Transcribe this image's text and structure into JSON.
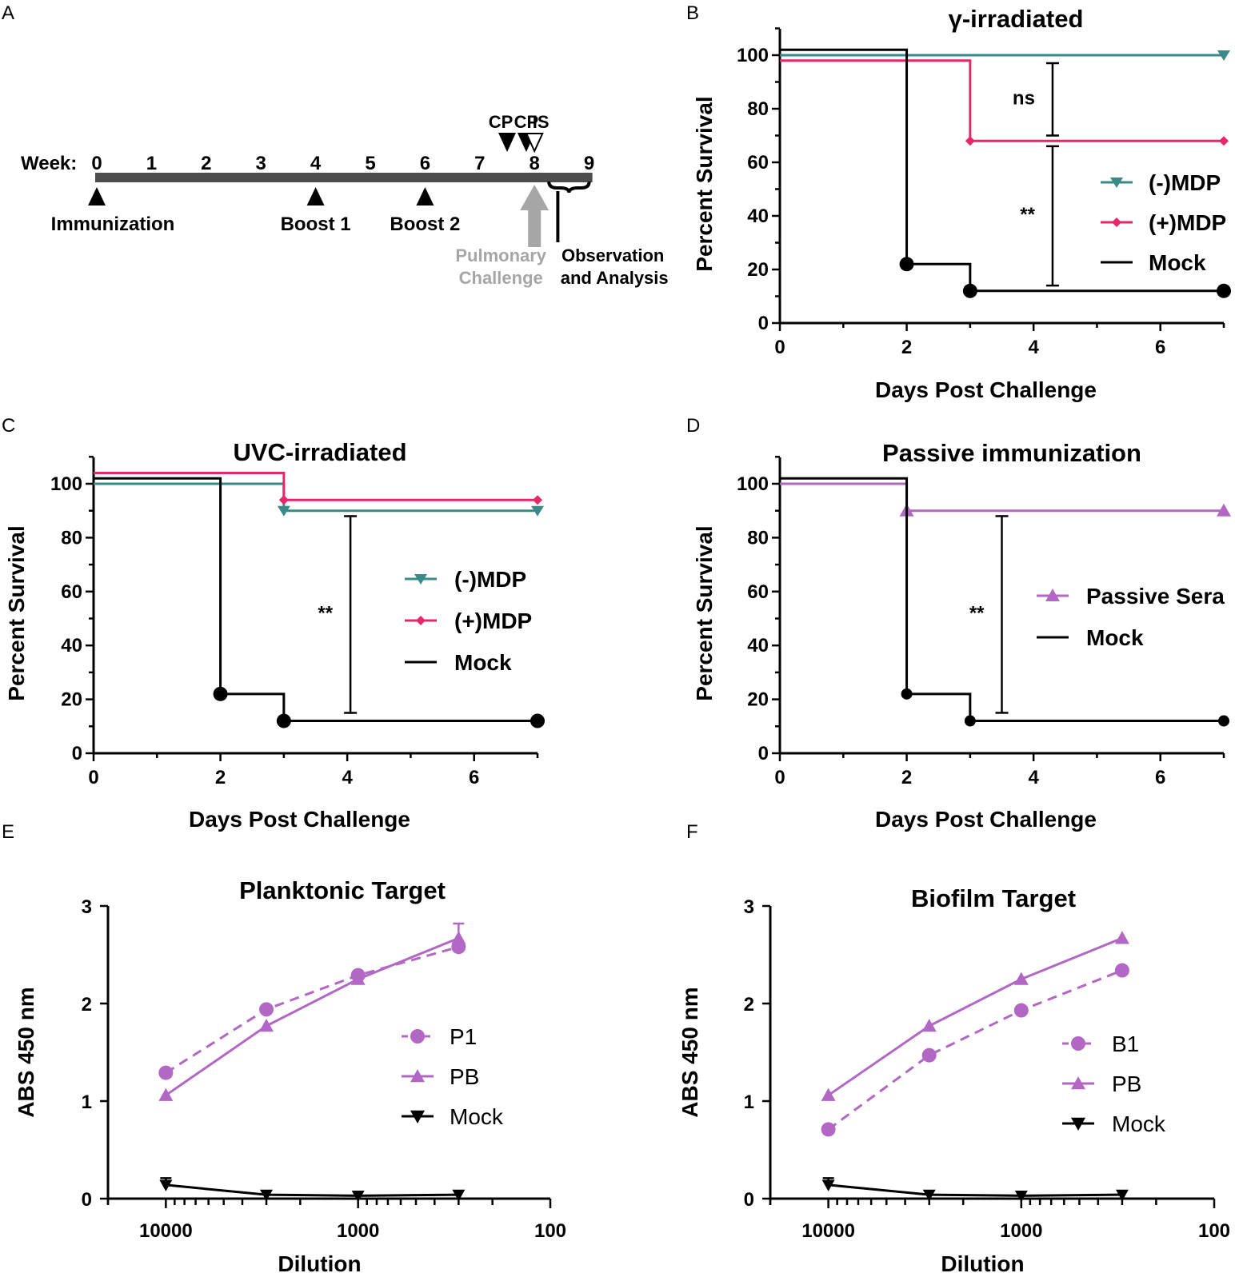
{
  "colors": {
    "teal": "#3a8a8a",
    "pink": "#e8276a",
    "black": "#000000",
    "purple": "#b267c4",
    "gray": "#a6a6a6",
    "bar": "#4d4d4d"
  },
  "panels": {
    "A": {
      "letter": "A",
      "week_label": "Week:",
      "weeks": [
        "0",
        "1",
        "2",
        "3",
        "4",
        "5",
        "6",
        "7",
        "8",
        "9"
      ],
      "events": [
        {
          "label": "Immunization",
          "week": 0
        },
        {
          "label": "Boost 1",
          "week": 4
        },
        {
          "label": "Boost 2",
          "week": 6
        }
      ],
      "markers": [
        {
          "label": "CP",
          "week": 7.5,
          "type": "filled"
        },
        {
          "label": "CP",
          "week": 7.85,
          "type": "filled"
        },
        {
          "label": "IS",
          "week": 8.0,
          "type": "open"
        }
      ],
      "challenge_label_1": "Pulmonary",
      "challenge_label_2": "Challenge",
      "observation_label_1": "Observation",
      "observation_label_2": "and Analysis"
    },
    "B": {
      "letter": "B"
    },
    "C": {
      "letter": "C"
    },
    "D": {
      "letter": "D"
    },
    "E": {
      "letter": "E"
    },
    "F": {
      "letter": "F"
    }
  },
  "chart_data": [
    {
      "id": "B",
      "type": "line",
      "subtype": "survival-step",
      "title": "γ-irradiated",
      "xlabel": "Days Post Challenge",
      "ylabel": "Percent Survival",
      "xlim": [
        0,
        7
      ],
      "ylim": [
        0,
        110
      ],
      "xticks": [
        0,
        2,
        4,
        6
      ],
      "yticks": [
        0,
        20,
        40,
        60,
        80,
        100
      ],
      "series": [
        {
          "name": "(-)MDP",
          "color": "#3a8a8a",
          "marker": "triangle-down",
          "steps": [
            [
              0,
              100
            ],
            [
              7,
              100
            ]
          ],
          "markers": [
            [
              7,
              100
            ]
          ]
        },
        {
          "name": "(+)MDP",
          "color": "#e8276a",
          "marker": "diamond",
          "steps": [
            [
              0,
              98
            ],
            [
              3,
              98
            ],
            [
              3,
              68
            ],
            [
              7,
              68
            ]
          ],
          "markers": [
            [
              3,
              68
            ],
            [
              7,
              68
            ]
          ]
        },
        {
          "name": "Mock",
          "color": "#000000",
          "marker": "circle",
          "steps": [
            [
              0,
              102
            ],
            [
              2,
              102
            ],
            [
              2,
              22
            ],
            [
              3,
              22
            ],
            [
              3,
              12
            ],
            [
              7,
              12
            ]
          ],
          "markers": [
            [
              2,
              22
            ],
            [
              3,
              12
            ],
            [
              7,
              12
            ]
          ]
        }
      ],
      "annotations": [
        {
          "text": "ns",
          "x": 4.3,
          "y_top": 97,
          "y_bottom": 70
        },
        {
          "text": "**",
          "x": 4.3,
          "y_top": 66,
          "y_bottom": 14
        }
      ],
      "legend": "right"
    },
    {
      "id": "C",
      "type": "line",
      "subtype": "survival-step",
      "title": "UVC-irradiated",
      "xlabel": "Days Post Challenge",
      "ylabel": "Percent Survival",
      "xlim": [
        0,
        7
      ],
      "ylim": [
        0,
        110
      ],
      "xticks": [
        0,
        2,
        4,
        6
      ],
      "yticks": [
        0,
        20,
        40,
        60,
        80,
        100
      ],
      "series": [
        {
          "name": "(-)MDP",
          "color": "#3a8a8a",
          "marker": "triangle-down",
          "steps": [
            [
              0,
              100
            ],
            [
              3,
              100
            ],
            [
              3,
              90
            ],
            [
              7,
              90
            ]
          ],
          "markers": [
            [
              3,
              90
            ],
            [
              7,
              90
            ]
          ]
        },
        {
          "name": "(+)MDP",
          "color": "#e8276a",
          "marker": "diamond",
          "steps": [
            [
              0,
              104
            ],
            [
              3,
              104
            ],
            [
              3,
              94
            ],
            [
              7,
              94
            ]
          ],
          "markers": [
            [
              3,
              94
            ],
            [
              7,
              94
            ]
          ]
        },
        {
          "name": "Mock",
          "color": "#000000",
          "marker": "circle",
          "steps": [
            [
              0,
              102
            ],
            [
              2,
              102
            ],
            [
              2,
              22
            ],
            [
              3,
              22
            ],
            [
              3,
              12
            ],
            [
              7,
              12
            ]
          ],
          "markers": [
            [
              2,
              22
            ],
            [
              3,
              12
            ],
            [
              7,
              12
            ]
          ]
        }
      ],
      "annotations": [
        {
          "text": "**",
          "x": 4.05,
          "y_top": 88,
          "y_bottom": 15
        }
      ],
      "legend": "right"
    },
    {
      "id": "D",
      "type": "line",
      "subtype": "survival-step",
      "title": "Passive immunization",
      "xlabel": "Days Post Challenge",
      "ylabel": "Percent Survival",
      "xlim": [
        0,
        7
      ],
      "ylim": [
        0,
        110
      ],
      "xticks": [
        0,
        2,
        4,
        6
      ],
      "yticks": [
        0,
        20,
        40,
        60,
        80,
        100
      ],
      "series": [
        {
          "name": "Passive Sera",
          "color": "#b267c4",
          "marker": "triangle-up",
          "steps": [
            [
              0,
              100
            ],
            [
              2,
              100
            ],
            [
              2,
              90
            ],
            [
              7,
              90
            ]
          ],
          "markers": [
            [
              2,
              90
            ],
            [
              7,
              90
            ]
          ]
        },
        {
          "name": "Mock",
          "color": "#000000",
          "marker": "circle-small",
          "steps": [
            [
              0,
              102
            ],
            [
              2,
              102
            ],
            [
              2,
              22
            ],
            [
              3,
              22
            ],
            [
              3,
              12
            ],
            [
              7,
              12
            ]
          ],
          "markers": [
            [
              2,
              22
            ],
            [
              3,
              12
            ],
            [
              7,
              12
            ]
          ]
        }
      ],
      "annotations": [
        {
          "text": "**",
          "x": 3.5,
          "y_top": 88,
          "y_bottom": 15
        }
      ],
      "legend": "right"
    },
    {
      "id": "E",
      "type": "line",
      "title": "Planktonic Target",
      "xlabel": "Dilution",
      "ylabel": "ABS 450 nm",
      "xscale": "log-reversed",
      "xlim": [
        20000,
        100
      ],
      "ylim": [
        0,
        3
      ],
      "xticks": [
        10000,
        1000,
        100
      ],
      "yticks": [
        0,
        1,
        2,
        3
      ],
      "x": [
        10000,
        3000,
        1000,
        300
      ],
      "series": [
        {
          "name": "P1",
          "color": "#b267c4",
          "marker": "circle",
          "dashed": true,
          "values": [
            1.29,
            1.94,
            2.29,
            2.58
          ]
        },
        {
          "name": "PB",
          "color": "#b267c4",
          "marker": "triangle-up",
          "dashed": false,
          "values": [
            1.06,
            1.77,
            2.25,
            2.67
          ],
          "errors_top": [
            0,
            0,
            0,
            0.15
          ]
        },
        {
          "name": "Mock",
          "color": "#000000",
          "marker": "triangle-down",
          "dashed": false,
          "values": [
            0.14,
            0.04,
            0.03,
            0.04
          ],
          "errors_top": [
            0.07,
            0,
            0,
            0
          ]
        }
      ],
      "legend": "center-right"
    },
    {
      "id": "F",
      "type": "line",
      "title": "Biofilm Target",
      "xlabel": "Dilution",
      "ylabel": "ABS 450 nm",
      "xscale": "log-reversed",
      "xlim": [
        20000,
        100
      ],
      "ylim": [
        0,
        3
      ],
      "xticks": [
        10000,
        1000,
        100
      ],
      "yticks": [
        0,
        1,
        2,
        3
      ],
      "x": [
        10000,
        3000,
        1000,
        300
      ],
      "series": [
        {
          "name": "B1",
          "color": "#b267c4",
          "marker": "circle",
          "dashed": true,
          "values": [
            0.71,
            1.47,
            1.93,
            2.34
          ]
        },
        {
          "name": "PB",
          "color": "#b267c4",
          "marker": "triangle-up",
          "dashed": false,
          "values": [
            1.06,
            1.77,
            2.25,
            2.67
          ]
        },
        {
          "name": "Mock",
          "color": "#000000",
          "marker": "triangle-down",
          "dashed": false,
          "values": [
            0.14,
            0.04,
            0.03,
            0.04
          ],
          "errors_top": [
            0.07,
            0,
            0,
            0
          ]
        }
      ],
      "legend": "center-right"
    }
  ]
}
